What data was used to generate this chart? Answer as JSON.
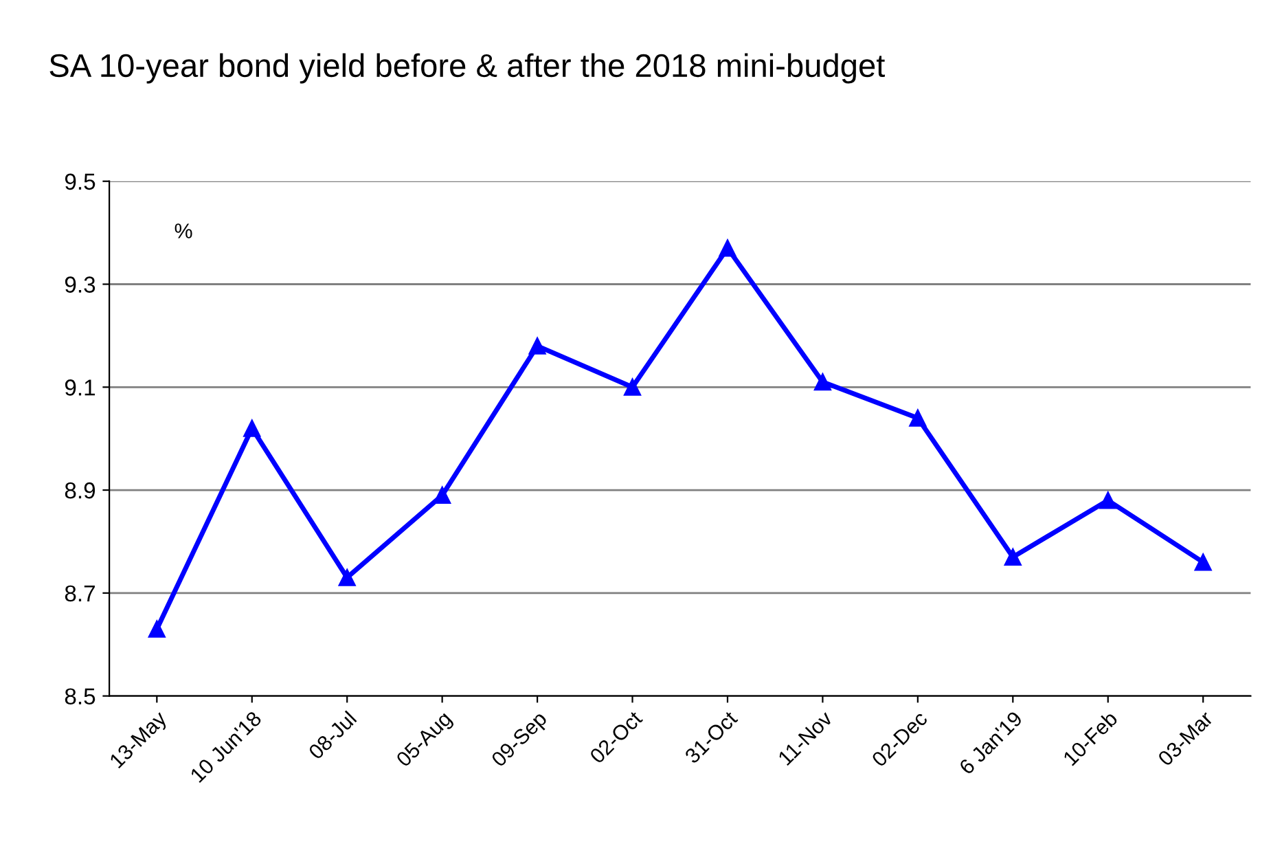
{
  "chart_data": {
    "type": "line",
    "title": "SA 10-year bond yield before & after the 2018 mini-budget",
    "annotations": [
      "%"
    ],
    "categories": [
      "13-May",
      "10 Jun'18",
      "08-Jul",
      "05-Aug",
      "09-Sep",
      "02-Oct",
      "31-Oct",
      "11-Nov",
      "02-Dec",
      "6 Jan'19",
      "10-Feb",
      "03-Mar"
    ],
    "series": [
      {
        "color": "#0000ff",
        "values": [
          8.63,
          9.02,
          8.73,
          8.89,
          9.18,
          9.1,
          9.37,
          9.11,
          9.04,
          8.77,
          8.88,
          8.76
        ]
      }
    ],
    "ylim": [
      8.5,
      9.5
    ],
    "yticks": [
      {
        "value": 8.5,
        "label": "8.5"
      },
      {
        "value": 8.7,
        "label": "8.7"
      },
      {
        "value": 8.9,
        "label": "8.9"
      },
      {
        "value": 9.1,
        "label": "9.1"
      },
      {
        "value": 9.3,
        "label": "9.3"
      },
      {
        "value": 9.5,
        "label": "9.5"
      }
    ],
    "grid": "y",
    "marker": "triangle",
    "line_style": "solid",
    "legend": false
  }
}
